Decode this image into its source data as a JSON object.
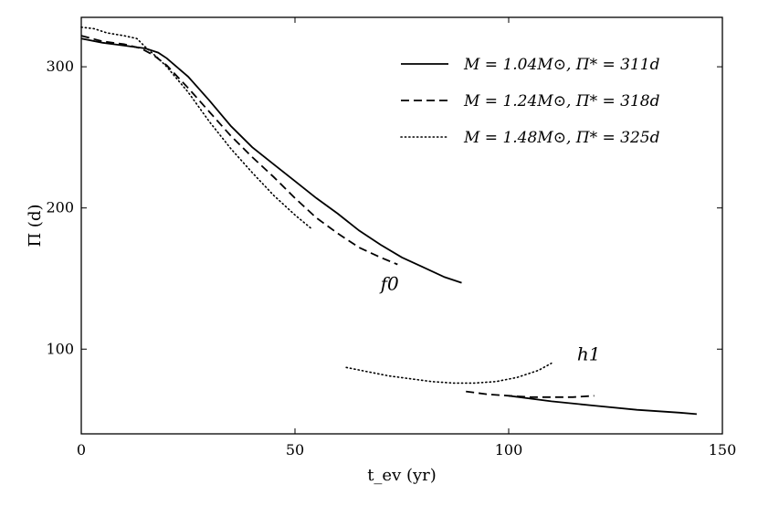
{
  "chart_data": {
    "type": "line",
    "xlabel": "t_ev (yr)",
    "ylabel": "Π (d)",
    "xlim": [
      0,
      150
    ],
    "ylim": [
      40,
      335
    ],
    "xticks": [
      "0",
      "50",
      "100",
      "150"
    ],
    "yticks": [
      "100",
      "200",
      "300"
    ],
    "grid": false,
    "legend_position": "top-right",
    "annotations": [
      "f0",
      "h1"
    ],
    "series": [
      {
        "name": "M = 1.04M⊙, Π* = 311d",
        "style": "solid",
        "segments": [
          {
            "mode": "f0",
            "x": [
              0,
              5,
              10,
              15,
              18,
              20,
              25,
              30,
              35,
              40,
              45,
              50,
              55,
              60,
              65,
              70,
              75,
              80,
              85,
              89
            ],
            "y": [
              320,
              317,
              315,
              313,
              310,
              306,
              293,
              276,
              258,
              243,
              231,
              219,
              207,
              196,
              184,
              174,
              165,
              158,
              151,
              147
            ]
          },
          {
            "mode": "h1",
            "x": [
              100,
              110,
              120,
              130,
              140,
              144
            ],
            "y": [
              67,
              63,
              60,
              57,
              55,
              54
            ]
          }
        ]
      },
      {
        "name": "M = 1.24M⊙, Π* = 318d",
        "style": "dashed",
        "segments": [
          {
            "mode": "f0",
            "x": [
              0,
              5,
              10,
              14,
              17,
              20,
              25,
              30,
              35,
              40,
              45,
              50,
              55,
              60,
              65,
              70,
              74
            ],
            "y": [
              322,
              318,
              316,
              313,
              308,
              301,
              285,
              268,
              251,
              236,
              222,
              207,
              193,
              182,
              172,
              165,
              160
            ]
          },
          {
            "mode": "h1",
            "x": [
              90,
              95,
              100,
              105,
              110,
              115,
              120
            ],
            "y": [
              70,
              68,
              67,
              66,
              66,
              66,
              67
            ]
          }
        ]
      },
      {
        "name": "M = 1.48M⊙, Π* = 325d",
        "style": "dotted",
        "segments": [
          {
            "mode": "f0",
            "x": [
              0,
              3,
              6,
              10,
              13,
              15,
              18,
              20,
              25,
              30,
              35,
              40,
              45,
              50,
              54
            ],
            "y": [
              328,
              327,
              324,
              322,
              320,
              314,
              306,
              300,
              282,
              261,
              242,
              225,
              209,
              195,
              185
            ]
          },
          {
            "mode": "h1",
            "x": [
              62,
              67,
              72,
              77,
              82,
              87,
              92,
              97,
              102,
              107,
              110
            ],
            "y": [
              87,
              84,
              81,
              79,
              77,
              76,
              76,
              77,
              80,
              85,
              90
            ]
          }
        ]
      }
    ]
  }
}
